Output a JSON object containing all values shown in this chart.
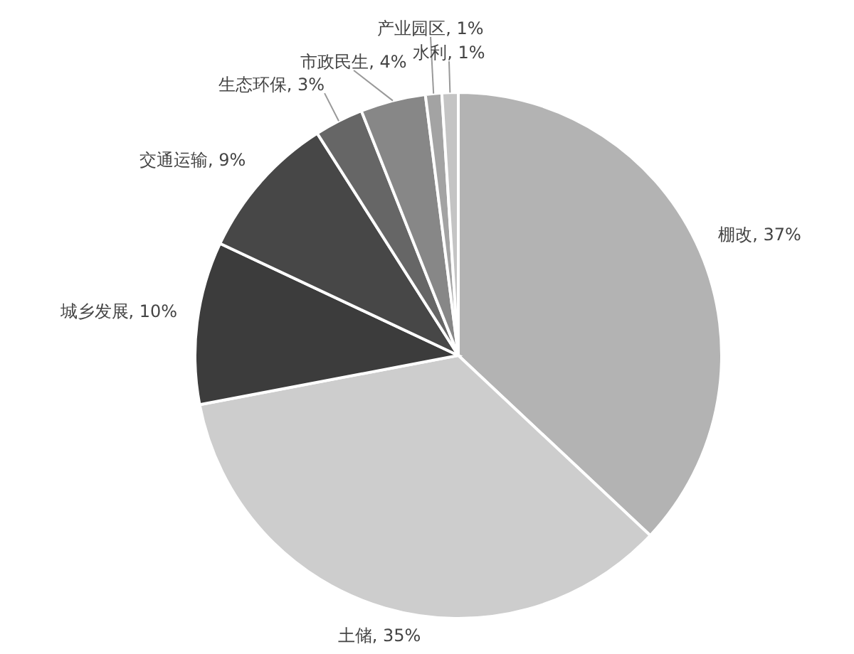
{
  "chart_data": {
    "type": "pie",
    "categories": [
      "棚改",
      "土储",
      "城乡发展",
      "交通运输",
      "生态环保",
      "市政民生",
      "产业园区",
      "水利"
    ],
    "values": [
      37,
      35,
      10,
      9,
      3,
      4,
      1,
      1
    ],
    "colors": [
      "#b3b3b3",
      "#cdcdcd",
      "#3c3c3c",
      "#474747",
      "#666666",
      "#878787",
      "#a3a3a3",
      "#c4c4c4"
    ],
    "value_labels": [
      ", 37%",
      ", 35%",
      ", 10%",
      ", 9%",
      ", 3%",
      ", 4%",
      ", 1%",
      ", 1%"
    ]
  }
}
